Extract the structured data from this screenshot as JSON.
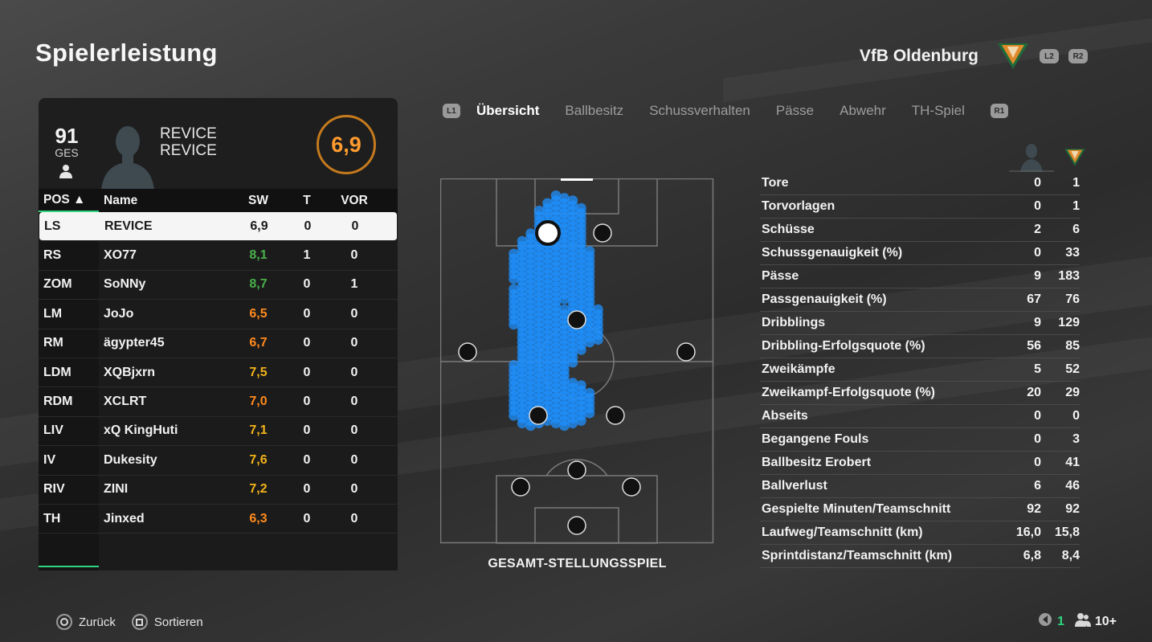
{
  "page_title": "Spielerleistung",
  "team": {
    "name": "VfB Oldenburg",
    "prev_button": "L2",
    "next_button": "R2"
  },
  "player_card": {
    "overall": "91",
    "overall_label": "GES",
    "name_line1": "REVICE",
    "name_line2": "REVICE",
    "rating": "6,9"
  },
  "roster": {
    "headers": {
      "pos": "POS ▲",
      "name": "Name",
      "sw": "SW",
      "t": "T",
      "vor": "VOR"
    },
    "rows": [
      {
        "pos": "LS",
        "name": "REVICE",
        "sw": "6,9",
        "t": "0",
        "vor": "0",
        "tone": "neutral",
        "selected": true
      },
      {
        "pos": "RS",
        "name": "XO77",
        "sw": "8,1",
        "t": "1",
        "vor": "0",
        "tone": "green"
      },
      {
        "pos": "ZOM",
        "name": "SoNNy",
        "sw": "8,7",
        "t": "0",
        "vor": "1",
        "tone": "green"
      },
      {
        "pos": "LM",
        "name": "JoJo",
        "sw": "6,5",
        "t": "0",
        "vor": "0",
        "tone": "orange"
      },
      {
        "pos": "RM",
        "name": "ägypter45",
        "sw": "6,7",
        "t": "0",
        "vor": "0",
        "tone": "orange"
      },
      {
        "pos": "LDM",
        "name": "XQBjxrn",
        "sw": "7,5",
        "t": "0",
        "vor": "0",
        "tone": "yellow"
      },
      {
        "pos": "RDM",
        "name": "XCLRT",
        "sw": "7,0",
        "t": "0",
        "vor": "0",
        "tone": "orange"
      },
      {
        "pos": "LIV",
        "name": "xQ KingHuti",
        "sw": "7,1",
        "t": "0",
        "vor": "0",
        "tone": "yellow"
      },
      {
        "pos": "IV",
        "name": "Dukesity",
        "sw": "7,6",
        "t": "0",
        "vor": "0",
        "tone": "yellow"
      },
      {
        "pos": "RIV",
        "name": "ZINI",
        "sw": "7,2",
        "t": "0",
        "vor": "0",
        "tone": "yellow"
      },
      {
        "pos": "TH",
        "name": "Jinxed",
        "sw": "6,3",
        "t": "0",
        "vor": "0",
        "tone": "orange"
      }
    ]
  },
  "tabs": {
    "left_bumper": "L1",
    "right_bumper": "R1",
    "items": [
      "Übersicht",
      "Ballbesitz",
      "Schussverhalten",
      "Pässe",
      "Abwehr",
      "TH-Spiel"
    ],
    "active": 0
  },
  "pitch": {
    "caption": "GESAMT-STELLUNGSSPIEL"
  },
  "stats": [
    {
      "label": "Tore",
      "player": "0",
      "team": "1"
    },
    {
      "label": "Torvorlagen",
      "player": "0",
      "team": "1"
    },
    {
      "label": "Schüsse",
      "player": "2",
      "team": "6"
    },
    {
      "label": "Schussgenauigkeit (%)",
      "player": "0",
      "team": "33"
    },
    {
      "label": "Pässe",
      "player": "9",
      "team": "183"
    },
    {
      "label": "Passgenauigkeit (%)",
      "player": "67",
      "team": "76"
    },
    {
      "label": "Dribblings",
      "player": "9",
      "team": "129"
    },
    {
      "label": "Dribbling-Erfolgsquote (%)",
      "player": "56",
      "team": "85"
    },
    {
      "label": "Zweikämpfe",
      "player": "5",
      "team": "52"
    },
    {
      "label": "Zweikampf-Erfolgsquote (%)",
      "player": "20",
      "team": "29"
    },
    {
      "label": "Abseits",
      "player": "0",
      "team": "0"
    },
    {
      "label": "Begangene Fouls",
      "player": "0",
      "team": "3"
    },
    {
      "label": "Ballbesitz Erobert",
      "player": "0",
      "team": "41"
    },
    {
      "label": "Ballverlust",
      "player": "6",
      "team": "46"
    },
    {
      "label": "Gespielte Minuten/Teamschnitt",
      "player": "92",
      "team": "92"
    },
    {
      "label": "Laufweg/Teamschnitt (km)",
      "player": "16,0",
      "team": "15,8"
    },
    {
      "label": "Sprintdistanz/Teamschnitt (km)",
      "player": "6,8",
      "team": "8,4"
    }
  ],
  "footer": {
    "back_label": "Zurück",
    "sort_label": "Sortieren",
    "network_count": "1",
    "players_count": "10+"
  },
  "colors": {
    "accent_green": "#2fd67f",
    "rating_orange": "#ff8a1e",
    "rating_green": "#49b04a",
    "rating_yellow": "#f2b31a",
    "heatmap_blue": "#1e90ff"
  }
}
